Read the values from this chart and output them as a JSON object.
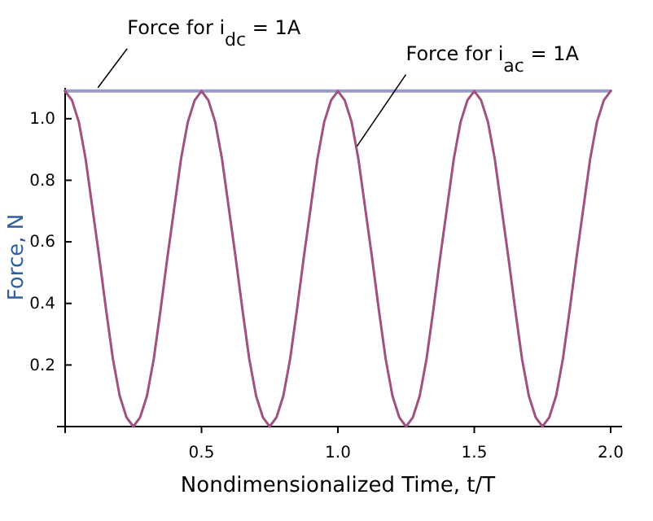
{
  "chart_data": {
    "type": "line",
    "xlabel": "Nondimensionalized Time, t/T",
    "ylabel": "Force, N",
    "xlim": [
      0,
      2
    ],
    "ylim": [
      0,
      1.1
    ],
    "xticks": [
      {
        "value": 0,
        "label": null
      },
      0.5,
      {
        "value": 1,
        "label": "1.0"
      },
      1.5,
      {
        "value": 2,
        "label": "2.0"
      }
    ],
    "yticks": [
      0.2,
      0.4,
      0.6,
      0.8,
      {
        "value": 1,
        "label": "1.0"
      }
    ],
    "grid": false,
    "x": [
      0,
      0.025,
      0.05,
      0.075,
      0.1,
      0.125,
      0.15,
      0.175,
      0.2,
      0.225,
      0.25,
      0.275,
      0.3,
      0.325,
      0.35,
      0.375,
      0.4,
      0.425,
      0.45,
      0.475,
      0.5,
      0.525,
      0.55,
      0.575,
      0.6,
      0.625,
      0.65,
      0.675,
      0.7,
      0.725,
      0.75,
      0.775,
      0.8,
      0.825,
      0.85,
      0.875,
      0.9,
      0.925,
      0.95,
      0.975,
      1,
      1.025,
      1.05,
      1.075,
      1.1,
      1.125,
      1.15,
      1.175,
      1.2,
      1.225,
      1.25,
      1.275,
      1.3,
      1.325,
      1.35,
      1.375,
      1.4,
      1.425,
      1.45,
      1.475,
      1.5,
      1.525,
      1.55,
      1.575,
      1.6,
      1.625,
      1.65,
      1.675,
      1.7,
      1.725,
      1.75,
      1.775,
      1.8,
      1.825,
      1.85,
      1.875,
      1.9,
      1.925,
      1.95,
      1.975,
      2
    ],
    "series": [
      {
        "color": "#9a9acd",
        "x": [
          0,
          2
        ],
        "values": [
          1.09,
          1.09
        ]
      },
      {
        "color": "#a0527e",
        "values": [
          1.09,
          1.06,
          0.99,
          0.87,
          0.71,
          0.55,
          0.38,
          0.22,
          0.1,
          0.03,
          0,
          0.03,
          0.1,
          0.22,
          0.38,
          0.55,
          0.71,
          0.87,
          0.99,
          1.06,
          1.09,
          1.06,
          0.99,
          0.87,
          0.71,
          0.55,
          0.38,
          0.22,
          0.1,
          0.03,
          0,
          0.03,
          0.1,
          0.22,
          0.38,
          0.55,
          0.71,
          0.87,
          0.99,
          1.06,
          1.09,
          1.06,
          0.99,
          0.87,
          0.71,
          0.55,
          0.38,
          0.22,
          0.1,
          0.03,
          0,
          0.03,
          0.1,
          0.22,
          0.38,
          0.55,
          0.71,
          0.87,
          0.99,
          1.06,
          1.09,
          1.06,
          0.99,
          0.87,
          0.71,
          0.55,
          0.38,
          0.22,
          0.1,
          0.03,
          0,
          0.03,
          0.1,
          0.22,
          0.38,
          0.55,
          0.71,
          0.87,
          0.99,
          1.06,
          1.09
        ]
      }
    ],
    "annotations": [
      {
        "text": "Force for i$_{dc}$ = 1A",
        "x": 0.12,
        "y": 1.09
      },
      {
        "text": "Force for i$_{ac}$ = 1A",
        "x": 1.07,
        "y": 0.9
      }
    ]
  }
}
